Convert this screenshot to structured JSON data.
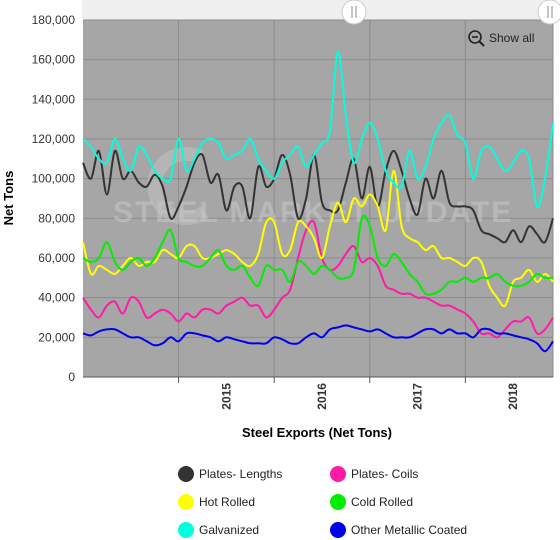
{
  "chart_data": {
    "type": "line",
    "title": "",
    "xlabel": "Steel Exports (Net Tons)",
    "ylabel": "Net Tons",
    "ylim": [
      0,
      180000
    ],
    "yticks": [
      "0",
      "20,000",
      "40,000",
      "60,000",
      "80,000",
      "100,000",
      "120,000",
      "140,000",
      "160,000",
      "180,000"
    ],
    "xticks": [
      "2015",
      "2016",
      "2017",
      "2018"
    ],
    "x_range": [
      "2014-01",
      "2018-12"
    ],
    "grid": true,
    "legend_position": "bottom",
    "watermark": "STEEL MARKET UPDATE",
    "show_all_label": "Show all",
    "x": [
      "2014-01",
      "2014-02",
      "2014-03",
      "2014-04",
      "2014-05",
      "2014-06",
      "2014-07",
      "2014-08",
      "2014-09",
      "2014-10",
      "2014-11",
      "2014-12",
      "2015-01",
      "2015-02",
      "2015-03",
      "2015-04",
      "2015-05",
      "2015-06",
      "2015-07",
      "2015-08",
      "2015-09",
      "2015-10",
      "2015-11",
      "2015-12",
      "2016-01",
      "2016-02",
      "2016-03",
      "2016-04",
      "2016-05",
      "2016-06",
      "2016-07",
      "2016-08",
      "2016-09",
      "2016-10",
      "2016-11",
      "2016-12",
      "2017-01",
      "2017-02",
      "2017-03",
      "2017-04",
      "2017-05",
      "2017-06",
      "2017-07",
      "2017-08",
      "2017-09",
      "2017-10",
      "2017-11",
      "2017-12",
      "2018-01",
      "2018-02",
      "2018-03",
      "2018-04",
      "2018-05",
      "2018-06",
      "2018-07",
      "2018-08",
      "2018-09",
      "2018-10",
      "2018-11",
      "2018-12"
    ],
    "series": [
      {
        "name": "Plates- Lengths",
        "color": "#333333",
        "values": [
          108000,
          100000,
          114000,
          92000,
          114000,
          100000,
          104000,
          98000,
          96000,
          102000,
          96000,
          80000,
          86000,
          96000,
          108000,
          112000,
          98000,
          102000,
          84000,
          96000,
          96000,
          80000,
          106000,
          96000,
          100000,
          112000,
          102000,
          80000,
          90000,
          112000,
          88000,
          84000,
          84000,
          98000,
          110000,
          90000,
          106000,
          86000,
          104000,
          114000,
          104000,
          90000,
          82000,
          100000,
          90000,
          104000,
          88000,
          86000,
          86000,
          84000,
          74000,
          72000,
          70000,
          68000,
          74000,
          68000,
          76000,
          72000,
          68000,
          80000
        ]
      },
      {
        "name": "Plates- Coils",
        "color": "#ff1aa8",
        "values": [
          40000,
          34000,
          30000,
          36000,
          38000,
          32000,
          40000,
          38000,
          30000,
          32000,
          34000,
          32000,
          28000,
          32000,
          30000,
          34000,
          34000,
          32000,
          36000,
          38000,
          40000,
          36000,
          36000,
          30000,
          34000,
          40000,
          44000,
          60000,
          74000,
          78000,
          60000,
          54000,
          56000,
          62000,
          66000,
          58000,
          60000,
          56000,
          46000,
          44000,
          42000,
          42000,
          40000,
          40000,
          38000,
          36000,
          36000,
          34000,
          32000,
          28000,
          22000,
          22000,
          20000,
          24000,
          28000,
          28000,
          30000,
          22000,
          24000,
          30000
        ]
      },
      {
        "name": "Hot Rolled",
        "color": "#ffff00",
        "values": [
          68000,
          52000,
          56000,
          54000,
          52000,
          56000,
          60000,
          56000,
          58000,
          58000,
          64000,
          62000,
          60000,
          66000,
          66000,
          60000,
          60000,
          62000,
          64000,
          62000,
          58000,
          56000,
          62000,
          78000,
          78000,
          62000,
          64000,
          78000,
          76000,
          70000,
          60000,
          76000,
          88000,
          78000,
          90000,
          86000,
          92000,
          86000,
          74000,
          104000,
          76000,
          70000,
          68000,
          64000,
          66000,
          60000,
          60000,
          58000,
          56000,
          60000,
          58000,
          46000,
          40000,
          36000,
          48000,
          50000,
          54000,
          48000,
          52000,
          48000
        ]
      },
      {
        "name": "Cold Rolled",
        "color": "#00ee00",
        "values": [
          60000,
          58000,
          60000,
          68000,
          58000,
          54000,
          58000,
          60000,
          56000,
          60000,
          68000,
          74000,
          60000,
          58000,
          56000,
          56000,
          60000,
          64000,
          56000,
          54000,
          56000,
          50000,
          46000,
          56000,
          54000,
          54000,
          48000,
          58000,
          56000,
          52000,
          56000,
          54000,
          50000,
          50000,
          54000,
          80000,
          76000,
          60000,
          56000,
          62000,
          58000,
          52000,
          48000,
          42000,
          42000,
          44000,
          48000,
          48000,
          50000,
          48000,
          50000,
          50000,
          52000,
          48000,
          46000,
          46000,
          48000,
          52000,
          50000,
          50000
        ]
      },
      {
        "name": "Galvanized",
        "color": "#00ffdd",
        "values": [
          120000,
          116000,
          110000,
          108000,
          120000,
          110000,
          104000,
          116000,
          112000,
          104000,
          100000,
          100000,
          120000,
          104000,
          110000,
          118000,
          120000,
          118000,
          110000,
          112000,
          114000,
          120000,
          110000,
          104000,
          100000,
          108000,
          112000,
          116000,
          106000,
          112000,
          118000,
          124000,
          164000,
          132000,
          108000,
          120000,
          128000,
          120000,
          104000,
          98000,
          96000,
          114000,
          100000,
          106000,
          120000,
          128000,
          132000,
          122000,
          118000,
          100000,
          114000,
          116000,
          110000,
          104000,
          108000,
          114000,
          110000,
          86000,
          100000,
          128000
        ]
      },
      {
        "name": "Other Metallic Coated",
        "color": "#0000ee",
        "values": [
          22000,
          21000,
          23000,
          24000,
          24000,
          22000,
          20000,
          20000,
          18000,
          16000,
          17000,
          20000,
          18000,
          22000,
          22000,
          21000,
          20000,
          18000,
          20000,
          19000,
          18000,
          17000,
          17000,
          17000,
          20000,
          19000,
          17000,
          17000,
          20000,
          22000,
          20000,
          24000,
          25000,
          26000,
          25000,
          24000,
          23000,
          24000,
          22000,
          20000,
          20000,
          20000,
          22000,
          24000,
          24000,
          22000,
          24000,
          22000,
          22000,
          20000,
          24000,
          24000,
          22000,
          22000,
          21000,
          20000,
          19000,
          17000,
          13000,
          18000
        ]
      }
    ]
  }
}
